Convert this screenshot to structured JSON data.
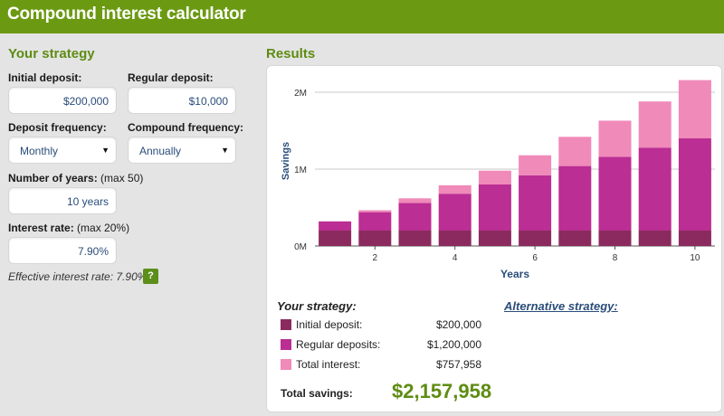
{
  "app": {
    "title": "Compound interest calculator"
  },
  "strategy": {
    "title": "Your strategy",
    "initial_deposit": {
      "label": "Initial deposit:",
      "value": "$200,000"
    },
    "regular_deposit": {
      "label": "Regular deposit:",
      "value": "$10,000"
    },
    "deposit_frequency": {
      "label": "Deposit frequency:",
      "value": "Monthly"
    },
    "compound_frequency": {
      "label": "Compound frequency:",
      "value": "Annually"
    },
    "years": {
      "label": "Number of years:",
      "hint": "(max 50)",
      "value": "10 years"
    },
    "interest": {
      "label": "Interest rate:",
      "hint": "(max 20%)",
      "value": "7.90%"
    },
    "effective_rate": "Effective interest rate: 7.90%",
    "help_label": "?"
  },
  "results": {
    "title": "Results",
    "your_strategy": "Your strategy:",
    "alternative_strategy": "Alternative strategy:",
    "legend": [
      {
        "name": "Initial deposit:",
        "amount": "$200,000",
        "color": "#8b2a5e"
      },
      {
        "name": "Regular deposits:",
        "amount": "$1,200,000",
        "color": "#bb2e93"
      },
      {
        "name": "Total interest:",
        "amount": "$757,958",
        "color": "#f08ab9"
      }
    ],
    "total_label": "Total savings:",
    "total_value": "$2,157,958"
  },
  "chart_data": {
    "type": "bar",
    "stacked": true,
    "xlabel": "Years",
    "ylabel": "Savings",
    "ylim": [
      0,
      2200000
    ],
    "yticks": [
      0,
      1000000,
      2000000
    ],
    "ytick_labels": [
      "0M",
      "1M",
      "2M"
    ],
    "xticks": [
      2,
      4,
      6,
      8,
      10
    ],
    "categories": [
      1,
      2,
      3,
      4,
      5,
      6,
      7,
      8,
      9,
      10
    ],
    "grid": true,
    "series": [
      {
        "name": "Initial deposit",
        "color": "#8b2a5e",
        "values": [
          200000,
          200000,
          200000,
          200000,
          200000,
          200000,
          200000,
          200000,
          200000,
          200000
        ]
      },
      {
        "name": "Regular deposits",
        "color": "#bb2e93",
        "values": [
          120000,
          240000,
          360000,
          480000,
          600000,
          720000,
          840000,
          960000,
          1080000,
          1200000
        ]
      },
      {
        "name": "Total interest",
        "color": "#f08ab9",
        "values": [
          0,
          25000,
          60000,
          110000,
          180000,
          260000,
          380000,
          470000,
          600000,
          757958
        ]
      }
    ]
  }
}
